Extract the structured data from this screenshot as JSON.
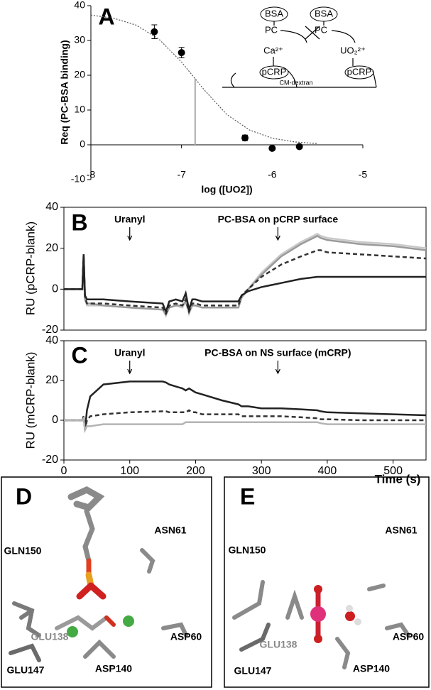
{
  "chart_data": [
    {
      "type": "scatter",
      "panel": "A",
      "xlabel": "log ([UO2])",
      "ylabel": "Req (PC-BSA binding)",
      "x": [
        -7.3,
        -7,
        -6.3,
        -6,
        -5.7
      ],
      "values": [
        32.5,
        26.5,
        2,
        -1,
        -0.5
      ],
      "errors": [
        2,
        1.5,
        0.8,
        0.5,
        0.4
      ],
      "color": "#000000",
      "fit": {
        "x": [
          -8,
          -7.75,
          -7.5,
          -7.25,
          -7,
          -6.85,
          -6.75,
          -6.5,
          -6.25,
          -6,
          -5.75,
          -5.5
        ],
        "values": [
          37.3,
          36.4,
          34.4,
          30.4,
          23.8,
          19,
          15.8,
          8.7,
          4.25,
          1.9,
          0.83,
          0.36
        ],
        "color": "#555555"
      },
      "marker_line": {
        "x": -6.85,
        "y": 19,
        "color": "#aaaaaa"
      },
      "xlim": [
        -8,
        -5
      ],
      "xticks": [
        -8,
        -7,
        -6,
        -5
      ],
      "ylim": [
        -10,
        40
      ],
      "yticks": [
        -10,
        0,
        10,
        20,
        30,
        40
      ],
      "annotations": [
        "BSA",
        "BSA",
        "PC",
        "PC",
        "Ca²⁺",
        "UO₂²⁺",
        "pCRP",
        "pCRP",
        "CM-dextran"
      ]
    },
    {
      "type": "line",
      "panel": "B",
      "ylabel": "RU (pCRP-blank)",
      "x": [
        0,
        10,
        20,
        28,
        30,
        32,
        35,
        40,
        60,
        100,
        150,
        155,
        160,
        170,
        180,
        185,
        190,
        195,
        200,
        210,
        240,
        265,
        270,
        280,
        300,
        330,
        360,
        385,
        390,
        400,
        450,
        500,
        550
      ],
      "series": [
        {
          "color": "#c8c8c8",
          "dashed": false,
          "values": [
            0,
            0,
            0,
            0,
            17,
            -5,
            -8,
            -8,
            -8,
            -9,
            -10,
            -13,
            -9,
            -8,
            -9,
            -6,
            -12,
            -8,
            -8,
            -9,
            -9,
            -9,
            -4,
            0,
            8,
            17,
            23,
            27,
            26,
            25,
            23,
            22,
            20
          ]
        },
        {
          "color": "#9a9a9a",
          "dashed": false,
          "values": [
            0,
            0,
            0,
            0,
            17,
            -5,
            -7,
            -7,
            -8,
            -9,
            -10,
            -12,
            -9,
            -8,
            -8,
            -6,
            -11,
            -8,
            -8,
            -9,
            -9,
            -9,
            -4,
            0,
            7,
            16,
            22,
            26,
            25,
            24,
            22,
            21,
            19
          ]
        },
        {
          "color": "#333333",
          "dashed": true,
          "values": [
            0,
            0,
            0,
            0,
            17,
            -4,
            -7,
            -7,
            -7,
            -8,
            -9,
            -12,
            -8,
            -7,
            -8,
            -5,
            -11,
            -7,
            -7,
            -8,
            -8,
            -8,
            -3,
            0,
            6,
            12,
            16,
            19,
            19,
            18,
            17,
            16,
            15
          ]
        },
        {
          "color": "#222222",
          "dashed": false,
          "values": [
            0,
            0,
            0,
            0,
            17,
            -3,
            -5,
            -5,
            -5,
            -6,
            -7,
            -11,
            -6,
            -5,
            -6,
            -2,
            -10,
            -5,
            -5,
            -6,
            -6,
            -6,
            -3,
            -1,
            1,
            3,
            5,
            6,
            6,
            6,
            6,
            6,
            6
          ]
        }
      ],
      "xlim": [
        0,
        550
      ],
      "ylim": [
        -20,
        40
      ],
      "yticks": [
        -20,
        0,
        20,
        40
      ],
      "annotations": [
        {
          "text": "Uranyl",
          "x": 100
        },
        {
          "text": "PC-BSA on pCRP surface",
          "x": 325
        }
      ]
    },
    {
      "type": "line",
      "panel": "C",
      "ylabel": "RU (mCRP-blank)",
      "xlabel": "Time (s)",
      "x": [
        0,
        10,
        20,
        28,
        30,
        32,
        35,
        40,
        60,
        100,
        150,
        155,
        160,
        170,
        180,
        185,
        190,
        195,
        200,
        210,
        240,
        265,
        270,
        280,
        300,
        330,
        360,
        385,
        390,
        400,
        450,
        500,
        550
      ],
      "series": [
        {
          "color": "#222222",
          "dashed": false,
          "values": [
            0,
            0,
            0,
            0,
            2,
            -5,
            5,
            12,
            18,
            19.5,
            19.5,
            19,
            18,
            17,
            16,
            15,
            16,
            15,
            14,
            13,
            10,
            8,
            7,
            7,
            6,
            6,
            5.5,
            5,
            4.5,
            4,
            3.5,
            3,
            2.5
          ]
        },
        {
          "color": "#333333",
          "dashed": true,
          "values": [
            0,
            0,
            0,
            0,
            2,
            -5,
            0,
            2,
            3,
            4,
            4.5,
            4.5,
            4,
            4,
            4,
            4,
            5,
            4,
            4,
            3,
            3,
            3,
            2,
            2,
            2,
            2,
            1.5,
            1,
            0.5,
            0.5,
            0,
            0,
            0
          ]
        },
        {
          "color": "#b4b4b4",
          "dashed": false,
          "values": [
            0,
            0,
            0,
            0,
            1,
            -5,
            -3,
            -3,
            -2,
            -2,
            -2,
            -2,
            -2,
            -2,
            -2,
            -1,
            -1,
            -1,
            -1,
            -1,
            -1,
            -1,
            -1,
            -1,
            -1,
            -1,
            -1,
            -1,
            -1.5,
            -2,
            -2,
            -2,
            -2
          ]
        }
      ],
      "xlim": [
        0,
        550
      ],
      "xticks": [
        0,
        100,
        200,
        300,
        400,
        500
      ],
      "ylim": [
        -20,
        40
      ],
      "yticks": [
        -20,
        0,
        20,
        40
      ],
      "annotations": [
        {
          "text": "Uranyl",
          "x": 100
        },
        {
          "text": "PC-BSA on NS surface (mCRP)",
          "x": 325
        }
      ]
    }
  ],
  "structures": [
    {
      "label": "D",
      "residues": [
        "ASN61",
        "GLN150",
        "GLU138",
        "GLU147",
        "ASP60",
        "ASP140"
      ]
    },
    {
      "label": "E",
      "residues": [
        "ASN61",
        "GLN150",
        "GLU138",
        "GLU147",
        "ASP60",
        "ASP140"
      ]
    }
  ]
}
